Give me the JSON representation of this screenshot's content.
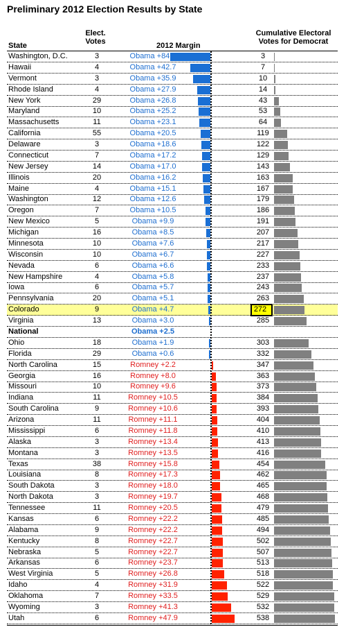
{
  "chart_data": {
    "type": "table",
    "title": "Preliminary 2012 Election Results by State",
    "columns": {
      "state": "State",
      "votes": "Elect. Votes",
      "margin": "2012 Margin",
      "cumulative": "Cumulative Electoral Votes for Democrat"
    },
    "rows": [
      {
        "state": "Washington, D.C.",
        "votes": 3,
        "margin_label": "Obama +84.1",
        "margin": 84.1,
        "cumulative": 3
      },
      {
        "state": "Hawaii",
        "votes": 4,
        "margin_label": "Obama +42.7",
        "margin": 42.7,
        "cumulative": 7
      },
      {
        "state": "Vermont",
        "votes": 3,
        "margin_label": "Obama +35.9",
        "margin": 35.9,
        "cumulative": 10
      },
      {
        "state": "Rhode Island",
        "votes": 4,
        "margin_label": "Obama +27.9",
        "margin": 27.9,
        "cumulative": 14
      },
      {
        "state": "New York",
        "votes": 29,
        "margin_label": "Obama +26.8",
        "margin": 26.8,
        "cumulative": 43
      },
      {
        "state": "Maryland",
        "votes": 10,
        "margin_label": "Obama +25.2",
        "margin": 25.2,
        "cumulative": 53
      },
      {
        "state": "Massachusetts",
        "votes": 11,
        "margin_label": "Obama +23.1",
        "margin": 23.1,
        "cumulative": 64
      },
      {
        "state": "California",
        "votes": 55,
        "margin_label": "Obama +20.5",
        "margin": 20.5,
        "cumulative": 119
      },
      {
        "state": "Delaware",
        "votes": 3,
        "margin_label": "Obama +18.6",
        "margin": 18.6,
        "cumulative": 122
      },
      {
        "state": "Connecticut",
        "votes": 7,
        "margin_label": "Obama +17.2",
        "margin": 17.2,
        "cumulative": 129
      },
      {
        "state": "New Jersey",
        "votes": 14,
        "margin_label": "Obama +17.0",
        "margin": 17.0,
        "cumulative": 143
      },
      {
        "state": "Illinois",
        "votes": 20,
        "margin_label": "Obama +16.2",
        "margin": 16.2,
        "cumulative": 163
      },
      {
        "state": "Maine",
        "votes": 4,
        "margin_label": "Obama +15.1",
        "margin": 15.1,
        "cumulative": 167
      },
      {
        "state": "Washington",
        "votes": 12,
        "margin_label": "Obama +12.6",
        "margin": 12.6,
        "cumulative": 179
      },
      {
        "state": "Oregon",
        "votes": 7,
        "margin_label": "Obama +10.5",
        "margin": 10.5,
        "cumulative": 186
      },
      {
        "state": "New Mexico",
        "votes": 5,
        "margin_label": "Obama +9.9",
        "margin": 9.9,
        "cumulative": 191
      },
      {
        "state": "Michigan",
        "votes": 16,
        "margin_label": "Obama +8.5",
        "margin": 8.5,
        "cumulative": 207
      },
      {
        "state": "Minnesota",
        "votes": 10,
        "margin_label": "Obama +7.6",
        "margin": 7.6,
        "cumulative": 217
      },
      {
        "state": "Wisconsin",
        "votes": 10,
        "margin_label": "Obama +6.7",
        "margin": 6.7,
        "cumulative": 227
      },
      {
        "state": "Nevada",
        "votes": 6,
        "margin_label": "Obama +6.6",
        "margin": 6.6,
        "cumulative": 233
      },
      {
        "state": "New Hampshire",
        "votes": 4,
        "margin_label": "Obama +5.8",
        "margin": 5.8,
        "cumulative": 237
      },
      {
        "state": "Iowa",
        "votes": 6,
        "margin_label": "Obama +5.7",
        "margin": 5.7,
        "cumulative": 243
      },
      {
        "state": "Pennsylvania",
        "votes": 20,
        "margin_label": "Obama +5.1",
        "margin": 5.1,
        "cumulative": 263
      },
      {
        "state": "Colorado",
        "votes": 9,
        "margin_label": "Obama +4.7",
        "margin": 4.7,
        "cumulative": 272,
        "highlight": true
      },
      {
        "state": "Virginia",
        "votes": 13,
        "margin_label": "Obama +3.0",
        "margin": 3.0,
        "cumulative": 285
      },
      {
        "state": "National",
        "votes": null,
        "margin_label": "Obama +2.5",
        "margin": 2.5,
        "cumulative": null,
        "national": true
      },
      {
        "state": "Ohio",
        "votes": 18,
        "margin_label": "Obama +1.9",
        "margin": 1.9,
        "cumulative": 303
      },
      {
        "state": "Florida",
        "votes": 29,
        "margin_label": "Obama +0.6",
        "margin": 0.6,
        "cumulative": 332
      },
      {
        "state": "North Carolina",
        "votes": 15,
        "margin_label": "Romney +2.2",
        "margin": -2.2,
        "cumulative": 347
      },
      {
        "state": "Georgia",
        "votes": 16,
        "margin_label": "Romney +8.0",
        "margin": -8.0,
        "cumulative": 363
      },
      {
        "state": "Missouri",
        "votes": 10,
        "margin_label": "Romney +9.6",
        "margin": -9.6,
        "cumulative": 373
      },
      {
        "state": "Indiana",
        "votes": 11,
        "margin_label": "Romney +10.5",
        "margin": -10.5,
        "cumulative": 384
      },
      {
        "state": "South Carolina",
        "votes": 9,
        "margin_label": "Romney +10.6",
        "margin": -10.6,
        "cumulative": 393
      },
      {
        "state": "Arizona",
        "votes": 11,
        "margin_label": "Romney +11.1",
        "margin": -11.1,
        "cumulative": 404
      },
      {
        "state": "Mississippi",
        "votes": 6,
        "margin_label": "Romney +11.8",
        "margin": -11.8,
        "cumulative": 410
      },
      {
        "state": "Alaska",
        "votes": 3,
        "margin_label": "Romney +13.4",
        "margin": -13.4,
        "cumulative": 413
      },
      {
        "state": "Montana",
        "votes": 3,
        "margin_label": "Romney +13.5",
        "margin": -13.5,
        "cumulative": 416
      },
      {
        "state": "Texas",
        "votes": 38,
        "margin_label": "Romney +15.8",
        "margin": -15.8,
        "cumulative": 454
      },
      {
        "state": "Louisiana",
        "votes": 8,
        "margin_label": "Romney +17.3",
        "margin": -17.3,
        "cumulative": 462
      },
      {
        "state": "South Dakota",
        "votes": 3,
        "margin_label": "Romney +18.0",
        "margin": -18.0,
        "cumulative": 465
      },
      {
        "state": "North Dakota",
        "votes": 3,
        "margin_label": "Romney +19.7",
        "margin": -19.7,
        "cumulative": 468
      },
      {
        "state": "Tennessee",
        "votes": 11,
        "margin_label": "Romney +20.5",
        "margin": -20.5,
        "cumulative": 479
      },
      {
        "state": "Kansas",
        "votes": 6,
        "margin_label": "Romney +22.2",
        "margin": -22.2,
        "cumulative": 485
      },
      {
        "state": "Alabama",
        "votes": 9,
        "margin_label": "Romney +22.2",
        "margin": -22.2,
        "cumulative": 494
      },
      {
        "state": "Kentucky",
        "votes": 8,
        "margin_label": "Romney +22.7",
        "margin": -22.7,
        "cumulative": 502
      },
      {
        "state": "Nebraska",
        "votes": 5,
        "margin_label": "Romney +22.7",
        "margin": -22.7,
        "cumulative": 507
      },
      {
        "state": "Arkansas",
        "votes": 6,
        "margin_label": "Romney +23.7",
        "margin": -23.7,
        "cumulative": 513
      },
      {
        "state": "West Virginia",
        "votes": 5,
        "margin_label": "Romney +26.8",
        "margin": -26.8,
        "cumulative": 518
      },
      {
        "state": "Idaho",
        "votes": 4,
        "margin_label": "Romney +31.9",
        "margin": -31.9,
        "cumulative": 522
      },
      {
        "state": "Oklahoma",
        "votes": 7,
        "margin_label": "Romney +33.5",
        "margin": -33.5,
        "cumulative": 529
      },
      {
        "state": "Wyoming",
        "votes": 3,
        "margin_label": "Romney +41.3",
        "margin": -41.3,
        "cumulative": 532
      },
      {
        "state": "Utah",
        "votes": 6,
        "margin_label": "Romney +47.9",
        "margin": -47.9,
        "cumulative": 538
      }
    ],
    "margin_max": 84.1,
    "cumulative_max": 538,
    "colors": {
      "democrat": "#1a6fd4",
      "republican": "#ff2200",
      "cumulative": "#808080",
      "highlight": "#ffff99"
    }
  }
}
